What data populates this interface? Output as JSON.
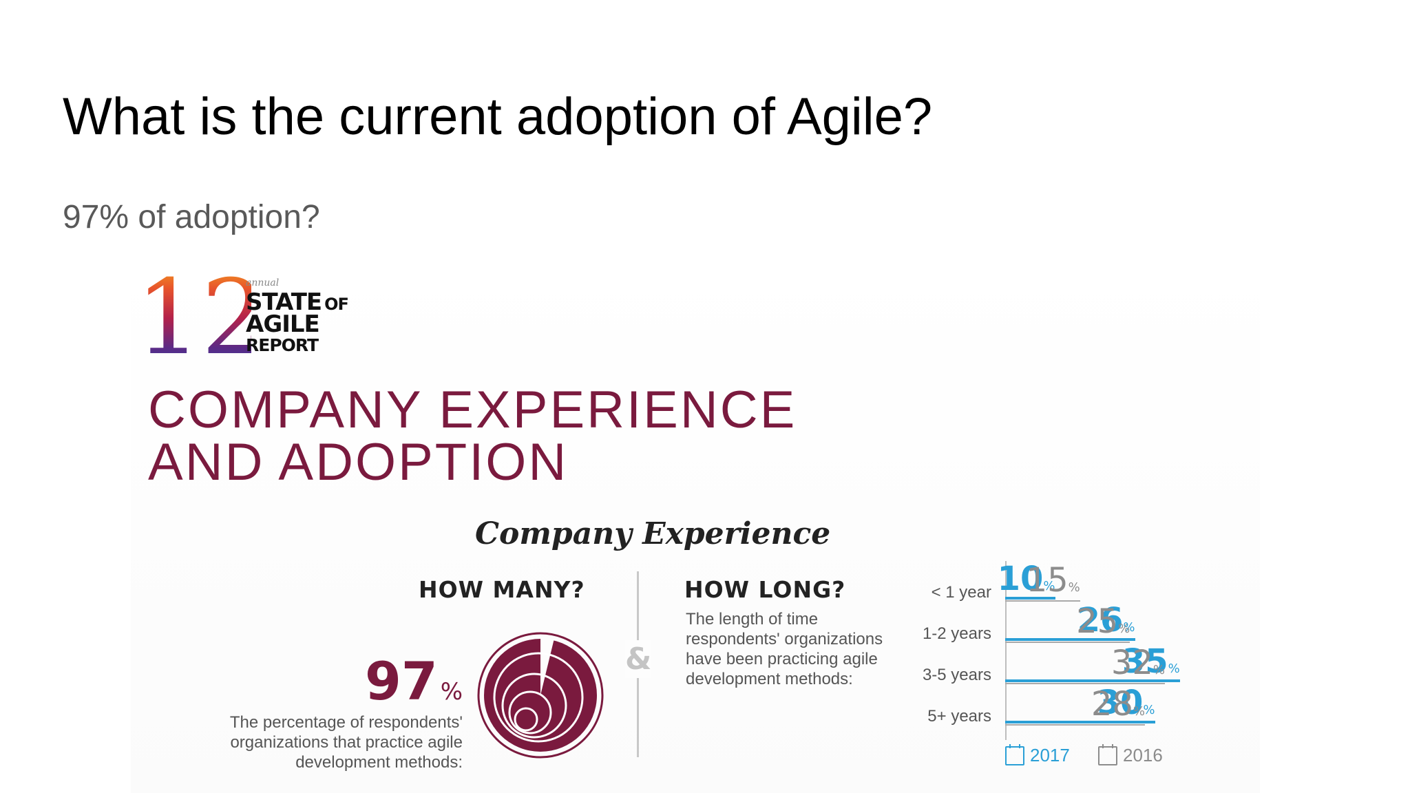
{
  "slide": {
    "title": "What is the current adoption of Agile?",
    "subtitle": "97% of adoption?"
  },
  "logo": {
    "number": "12",
    "annual": "annual",
    "line1": "STATE",
    "line1_of": "OF",
    "line2": "AGILE",
    "line3": "REPORT",
    "colors": [
      "#f5b21d",
      "#e8552b",
      "#b3214a",
      "#5b2a86",
      "#2a4aa8"
    ]
  },
  "infographic": {
    "section_title": [
      "COMPANY EXPERIENCE",
      "AND ADOPTION"
    ],
    "sub_heading": "Company Experience",
    "how_many": {
      "heading": "HOW MANY?",
      "value": "97",
      "unit": "%",
      "description": "The percentage of respondents' organizations that practice agile development methods:",
      "fill_fraction": 0.97,
      "color": "#7a1a3e"
    },
    "ampersand": "&",
    "how_long": {
      "heading": "HOW LONG?",
      "description": "The length of time respondents' organizations have been practicing agile development methods:"
    }
  },
  "chart_data": {
    "type": "bar",
    "categories": [
      "< 1 year",
      "1-2 years",
      "3-5 years",
      "5+ years"
    ],
    "series": [
      {
        "name": "2017",
        "values": [
          10,
          26,
          35,
          30
        ],
        "color": "#2a9fd6"
      },
      {
        "name": "2016",
        "values": [
          15,
          25,
          32,
          28
        ],
        "color": "#8c8c8c"
      }
    ],
    "value_unit": "%",
    "xlim": [
      0,
      40
    ],
    "legend_position": "bottom"
  },
  "legend": {
    "items": [
      {
        "label": "2017",
        "icon": "calendar-icon",
        "color": "#2a9fd6"
      },
      {
        "label": "2016",
        "icon": "calendar-icon",
        "color": "#8c8c8c"
      }
    ]
  }
}
